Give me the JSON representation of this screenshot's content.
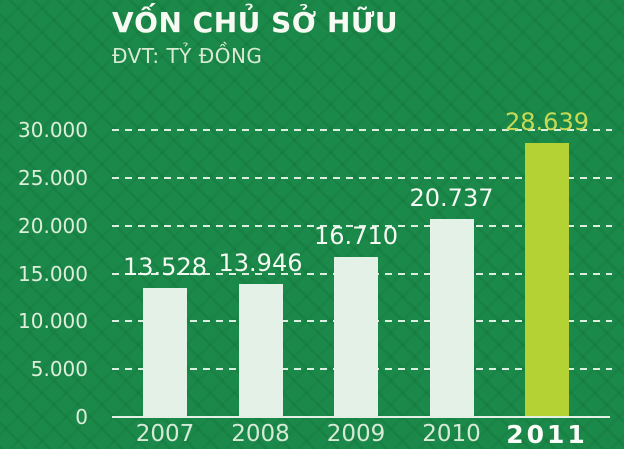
{
  "header": {
    "title": "VỐN CHỦ SỞ HỮU",
    "subtitle": "ĐVT: TỶ ĐỒNG"
  },
  "chart_data": {
    "type": "bar",
    "title": "VỐN CHỦ SỞ HỮU",
    "unit_label": "ĐVT: TỶ ĐỒNG",
    "categories": [
      "2007",
      "2008",
      "2009",
      "2010",
      "2011"
    ],
    "values": [
      13528,
      13946,
      16710,
      20737,
      28639
    ],
    "value_labels": [
      "13.528",
      "13.946",
      "16.710",
      "20.737",
      "28.639"
    ],
    "ylim": [
      0,
      30000
    ],
    "ytick_interval": 5000,
    "ytick_labels": [
      "30.000",
      "25.000",
      "20.000",
      "15.000",
      "10.000",
      "5.000",
      "0"
    ],
    "grid": "horizontal-dashed",
    "legend": "none",
    "highlight_category": "2011",
    "colors": {
      "background": "#1b8949",
      "bar": "#e4f1e7",
      "bar_highlight": "#b4d233",
      "value_label": "#f4f9f1",
      "value_label_highlight": "#c8da55",
      "axis_text": "#ddeeda",
      "title_text": "#f7faf3"
    }
  }
}
